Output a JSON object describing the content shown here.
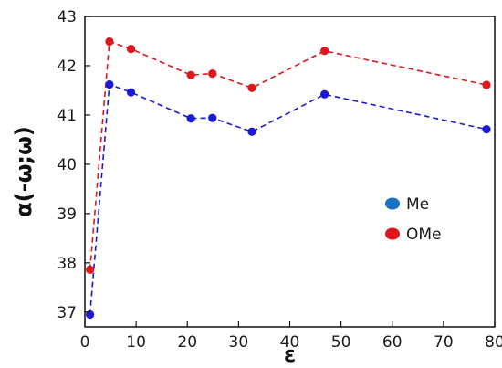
{
  "chart_data": {
    "type": "line",
    "xlabel": "ε",
    "ylabel": "α(-ω;ω)",
    "xlim": [
      0,
      80
    ],
    "ylim": [
      36.7,
      43
    ],
    "x_ticks": [
      0,
      10,
      20,
      30,
      40,
      50,
      60,
      70,
      80
    ],
    "y_ticks": [
      37,
      38,
      39,
      40,
      41,
      42,
      43
    ],
    "x": [
      1,
      4.8,
      9,
      20.7,
      24.9,
      32.6,
      46.8,
      78.4
    ],
    "series": [
      {
        "name": "Me",
        "color": "#1a1ad6",
        "legend_marker_color": "#1772c2",
        "values": [
          36.95,
          41.62,
          41.46,
          40.93,
          40.94,
          40.66,
          41.42,
          40.71
        ]
      },
      {
        "name": "OMe",
        "color": "#e0161c",
        "legend_marker_color": "#e0161c",
        "values": [
          37.86,
          42.49,
          42.34,
          41.81,
          41.84,
          41.55,
          42.3,
          41.61
        ]
      }
    ],
    "line_style": "dashed",
    "grid": false,
    "legend_position": "lower-right"
  }
}
